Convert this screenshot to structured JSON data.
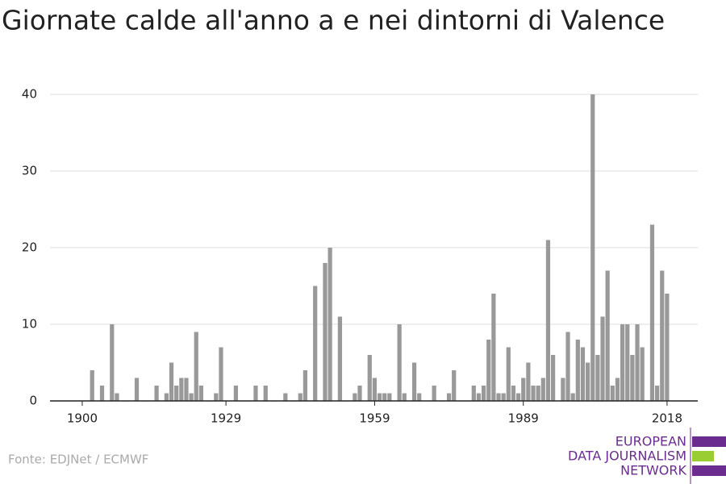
{
  "chart_data": {
    "type": "bar",
    "title": "Giornate calde all'anno a e nei dintorni di Valence",
    "source": "Fonte: EDJNet / ECMWF",
    "logo": [
      "EUROPEAN",
      "DATA JOURNALISM",
      "NETWORK"
    ],
    "color": "#999999",
    "x": [
      1900,
      1901,
      1902,
      1903,
      1904,
      1905,
      1906,
      1907,
      1908,
      1909,
      1910,
      1911,
      1912,
      1913,
      1914,
      1915,
      1916,
      1917,
      1918,
      1919,
      1920,
      1921,
      1922,
      1923,
      1924,
      1925,
      1926,
      1927,
      1928,
      1929,
      1930,
      1931,
      1932,
      1933,
      1934,
      1935,
      1936,
      1937,
      1938,
      1939,
      1940,
      1941,
      1942,
      1943,
      1944,
      1945,
      1946,
      1947,
      1948,
      1949,
      1950,
      1951,
      1952,
      1953,
      1954,
      1955,
      1956,
      1957,
      1958,
      1959,
      1960,
      1961,
      1962,
      1963,
      1964,
      1965,
      1966,
      1967,
      1968,
      1969,
      1970,
      1971,
      1972,
      1973,
      1974,
      1975,
      1976,
      1977,
      1978,
      1979,
      1980,
      1981,
      1982,
      1983,
      1984,
      1985,
      1986,
      1987,
      1988,
      1989,
      1990,
      1991,
      1992,
      1993,
      1994,
      1995,
      1996,
      1997,
      1998,
      1999,
      2000,
      2001,
      2002,
      2003,
      2004,
      2005,
      2006,
      2007,
      2008,
      2009,
      2010,
      2011,
      2012,
      2013,
      2014,
      2015,
      2016,
      2017,
      2018
    ],
    "values": [
      0,
      0,
      4,
      0,
      2,
      0,
      10,
      1,
      0,
      0,
      0,
      3,
      0,
      0,
      0,
      2,
      0,
      1,
      5,
      2,
      3,
      3,
      1,
      9,
      2,
      0,
      0,
      1,
      7,
      0,
      0,
      2,
      0,
      0,
      0,
      2,
      0,
      2,
      0,
      0,
      0,
      1,
      0,
      0,
      1,
      4,
      0,
      15,
      0,
      18,
      20,
      0,
      11,
      0,
      0,
      1,
      2,
      0,
      6,
      3,
      1,
      1,
      1,
      0,
      10,
      1,
      0,
      5,
      1,
      0,
      0,
      2,
      0,
      0,
      1,
      4,
      0,
      0,
      0,
      2,
      1,
      2,
      8,
      14,
      1,
      1,
      7,
      2,
      1,
      3,
      5,
      2,
      2,
      3,
      21,
      6,
      0,
      3,
      9,
      1,
      8,
      7,
      5,
      40,
      6,
      11,
      17,
      2,
      3,
      10,
      10,
      6,
      10,
      7,
      0,
      23,
      2,
      17,
      14
    ],
    "xlim": [
      1893.5,
      2024.2
    ],
    "xticks": [
      1900,
      1929,
      1959,
      1989,
      2018
    ],
    "ylim": [
      0,
      40
    ],
    "yticks": [
      0,
      10,
      20,
      30,
      40
    ],
    "grid": true
  }
}
